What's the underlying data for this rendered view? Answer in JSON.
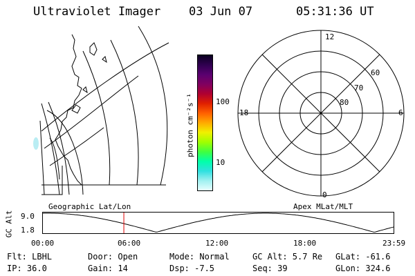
{
  "header": {
    "instrument": "Ultraviolet Imager",
    "date": "03 Jun 07",
    "time": "05:31:36 UT"
  },
  "colorbar": {
    "unit_label": "photon cm⁻²s⁻¹",
    "ticks": [
      "100",
      "10"
    ],
    "colors": [
      "#0a0020",
      "#300050",
      "#5a0070",
      "#800060",
      "#b00030",
      "#e02000",
      "#ff6000",
      "#ffaa00",
      "#f0f000",
      "#a0ff00",
      "#40ff40",
      "#00ffaa",
      "#30e0e0",
      "#a0f0f0",
      "#e8ffff"
    ]
  },
  "polar_plot": {
    "mlt_labels": {
      "top": "12",
      "bottom": "0",
      "left": "18",
      "right": "6"
    },
    "mlat_labels": [
      "60",
      "70",
      "80"
    ]
  },
  "timeline": {
    "ylabel": "GC Alt",
    "yticks": [
      "9.0",
      "1.8"
    ],
    "left_title": "Geographic Lat/Lon",
    "right_title": "Apex MLat/MLT",
    "xticks": [
      "00:00",
      "06:00",
      "12:00",
      "18:00",
      "23:59"
    ],
    "marker_hour": 5.53
  },
  "info": {
    "filter": "Flt: LBHL",
    "ip": "IP: 36.0",
    "door": "Door: Open",
    "gain": "Gain: 14",
    "mode": "Mode: Normal",
    "dsp": "Dsp:   -7.5",
    "gc_alt": "GC Alt: 5.7 Re",
    "seq": "Seq: 39",
    "glat": "GLat: -61.6",
    "glon": "GLon: 324.6"
  }
}
